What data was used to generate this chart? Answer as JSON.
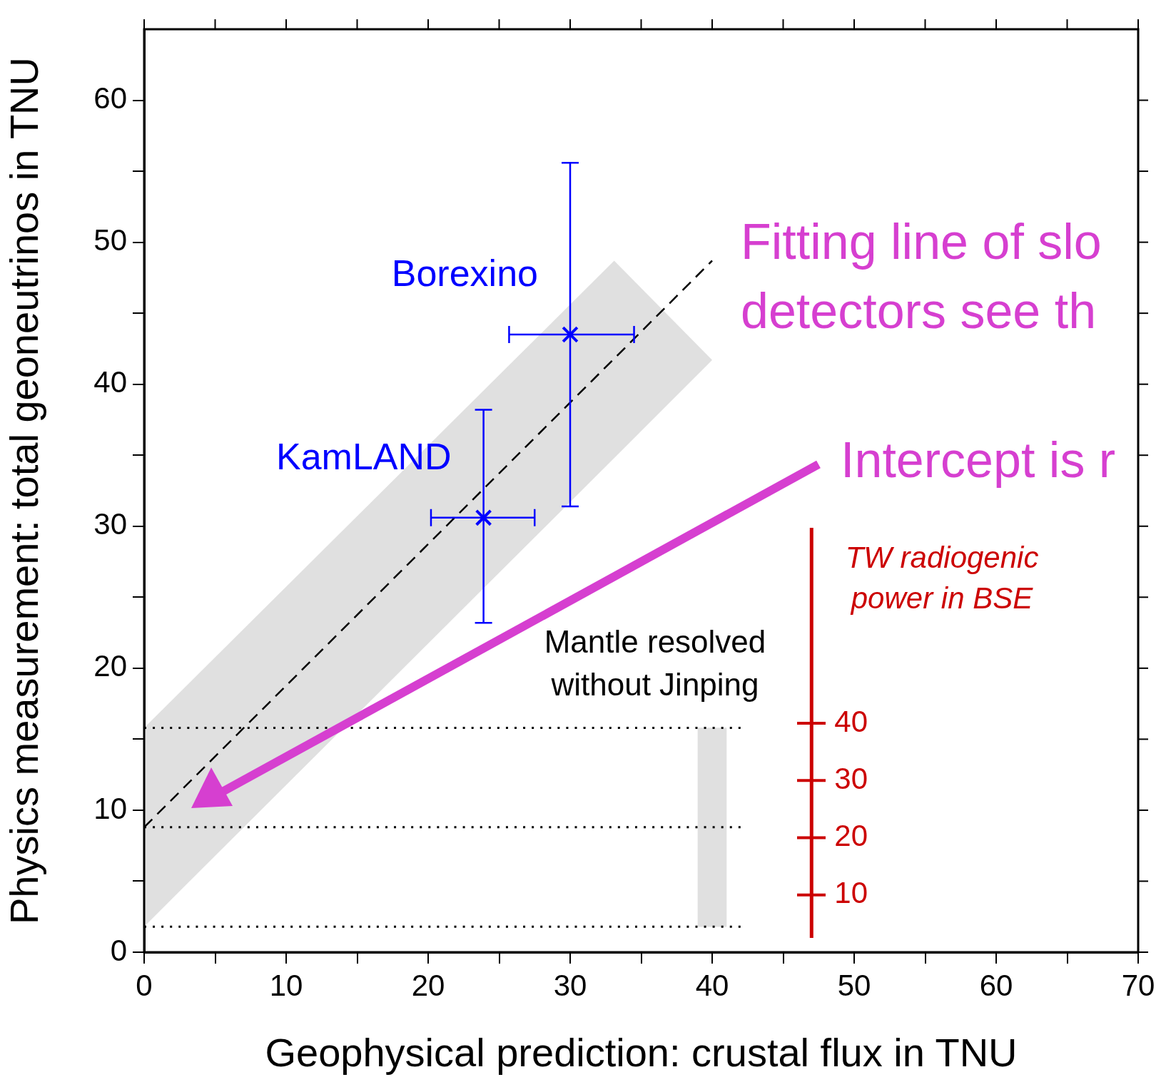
{
  "chart_data": {
    "type": "scatter",
    "xlabel": "Geophysical prediction: crustal flux in TNU",
    "ylabel": "Physics measurement: total geoneutrinos in TNU",
    "y2label": "TW radiogenic\npower in BSE",
    "xlim": [
      0,
      70
    ],
    "ylim": [
      0,
      65
    ],
    "y2lim": [
      0,
      161.3
    ],
    "xticks": [
      0,
      {
        "value": 5,
        "label": null
      },
      10,
      {
        "value": 15,
        "label": null
      },
      20,
      {
        "value": 25,
        "label": null
      },
      30,
      {
        "value": 35,
        "label": null
      },
      40,
      {
        "value": 45,
        "label": null
      },
      50,
      {
        "value": 55,
        "label": null
      },
      60,
      {
        "value": 65,
        "label": null
      },
      70
    ],
    "yticks": [
      0,
      {
        "value": 5,
        "label": null
      },
      10,
      {
        "value": 15,
        "label": null
      },
      20,
      {
        "value": 25,
        "label": null
      },
      30,
      {
        "value": 35,
        "label": null
      },
      40,
      {
        "value": 45,
        "label": null
      },
      50,
      {
        "value": 55,
        "label": null
      },
      60
    ],
    "y2ticks": [
      10,
      20,
      30,
      40
    ],
    "grid": false,
    "legend": false,
    "series": [
      {
        "type": "bar",
        "color": "#e0e0e0",
        "x": [
          40
        ],
        "base": [
          1.8
        ],
        "values": [
          14.0
        ]
      },
      {
        "type": "line",
        "color": "#000000",
        "line_style": "dotted",
        "x": [
          0,
          42
        ],
        "values": [
          15.8,
          15.8
        ]
      },
      {
        "type": "line",
        "color": "#000000",
        "line_style": "dotted",
        "x": [
          0,
          42
        ],
        "values": [
          8.8,
          8.8
        ]
      },
      {
        "type": "line",
        "color": "#000000",
        "line_style": "dotted",
        "x": [
          0,
          42
        ],
        "values": [
          1.8,
          1.8
        ]
      },
      {
        "type": "line",
        "color": "#000000",
        "line_style": "dashed",
        "x": [
          0,
          33.1,
          40
        ],
        "values": [
          8.8,
          41.8,
          48.7
        ],
        "lower": [
          1.8,
          34.8,
          41.7
        ],
        "upper": [
          15.8,
          48.7,
          41.7
        ]
      },
      {
        "name": "KamLAND",
        "color": "#0000ff",
        "marker": "cross",
        "x": [
          23.9
        ],
        "values": [
          30.6
        ],
        "errors": [
          [
            23.2,
            38.2
          ]
        ],
        "xerrors": [
          [
            20.2,
            27.5
          ]
        ]
      },
      {
        "name": "Borexino",
        "color": "#0000ff",
        "marker": "cross",
        "x": [
          30.0
        ],
        "values": [
          43.5
        ],
        "errors": [
          [
            31.4,
            55.6
          ]
        ],
        "xerrors": [
          [
            25.7,
            34.5
          ]
        ]
      }
    ],
    "annotations": [
      "Fitting line of slo",
      "detectors see th",
      "Intercept is r",
      "Mantle resolved\nwithout Jinping"
    ]
  }
}
